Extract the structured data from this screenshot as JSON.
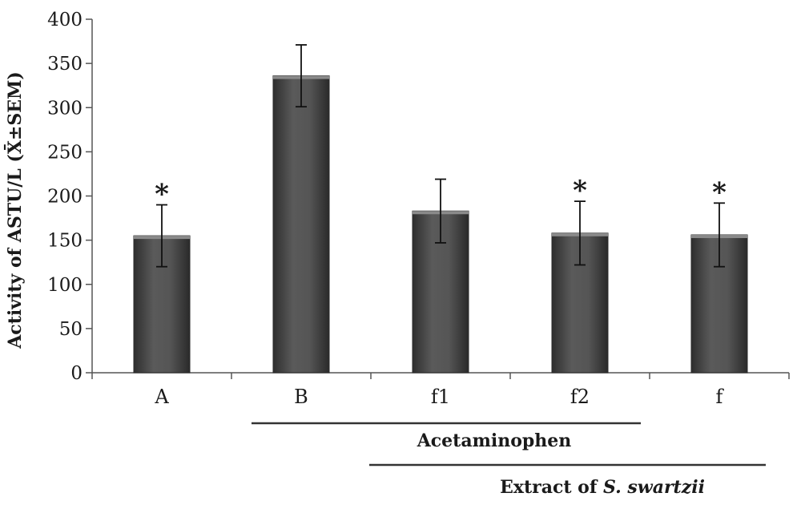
{
  "chart_data": {
    "type": "bar",
    "categories": [
      "A",
      "B",
      "f1",
      "f2",
      "f"
    ],
    "values": [
      155,
      336,
      183,
      158,
      156
    ],
    "errors": [
      35,
      35,
      36,
      36,
      36
    ],
    "significance": [
      "*",
      "",
      "",
      "*",
      "*"
    ],
    "ylabel": "Activity of ASTU/L (X̄±SEM)",
    "xlabel": "",
    "ylim": [
      0,
      400
    ],
    "yticks": [
      0,
      50,
      100,
      150,
      200,
      250,
      300,
      350,
      400
    ],
    "grid": false,
    "bar_color": "#4d4d4d",
    "group_labels": [
      {
        "text": "Acetaminophen",
        "italic_part": "",
        "spans_from": "B",
        "spans_to": "f2"
      },
      {
        "text": "Extract of ",
        "italic_part": "S. swartzii",
        "spans_from": "f1",
        "spans_to": "f"
      }
    ]
  }
}
